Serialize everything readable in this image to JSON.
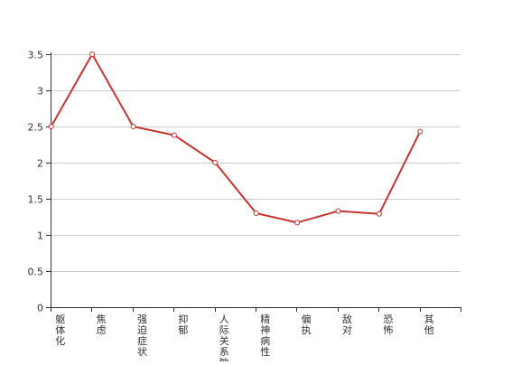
{
  "chart_data": {
    "type": "line",
    "title": "",
    "xlabel": "",
    "ylabel": "",
    "categories": [
      "躯体化",
      "焦虑",
      "强迫症状",
      "抑郁",
      "人际关系敏感",
      "精神病性",
      "偏执",
      "敌对",
      "恐怖",
      "其他"
    ],
    "series": [
      {
        "values": [
          2.5,
          3.5,
          2.5,
          2.38,
          2.0,
          1.3,
          1.17,
          1.33,
          1.29,
          2.43
        ]
      }
    ],
    "ylim": [
      0,
      3.5
    ],
    "yticks": [
      "0",
      "0.5",
      "1",
      "1.5",
      "2",
      "2.5",
      "3",
      "3.5"
    ],
    "grid": true,
    "legend": "none",
    "colors": {
      "line": "#c23531",
      "grid": "#cccccc",
      "axis": "#333333"
    }
  }
}
